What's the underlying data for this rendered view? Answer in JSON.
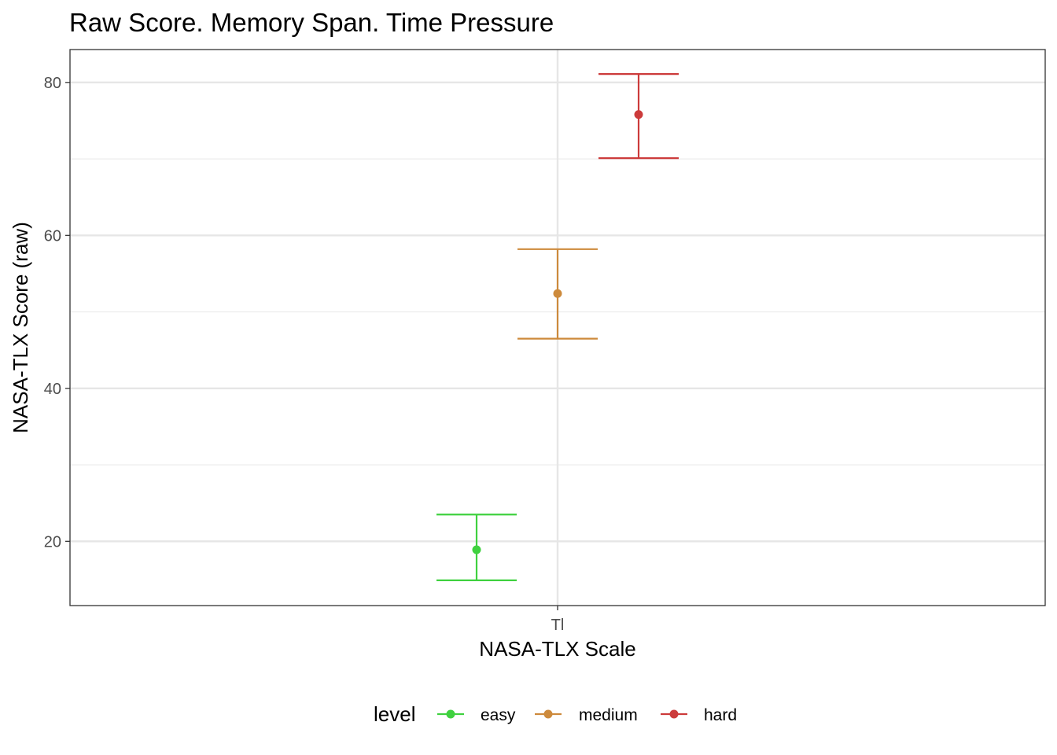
{
  "chart_data": {
    "type": "scatter",
    "title": "Raw Score. Memory Span. Time Pressure",
    "xlabel": "NASA-TLX Scale",
    "ylabel": "NASA-TLX Score (raw)",
    "categories": [
      "Tl"
    ],
    "ylim": [
      11.6,
      84.3
    ],
    "yticks": [
      "20",
      "40",
      "60",
      "80"
    ],
    "grid": true,
    "legend": {
      "title": "level",
      "position": "bottom"
    },
    "series": [
      {
        "name": "easy",
        "color": "#3fd13f",
        "mean": 18.9,
        "lower": 14.9,
        "upper": 23.5
      },
      {
        "name": "medium",
        "color": "#cd8a3c",
        "mean": 52.4,
        "lower": 46.5,
        "upper": 58.2
      },
      {
        "name": "hard",
        "color": "#cc3b3b",
        "mean": 75.8,
        "lower": 70.1,
        "upper": 81.1
      }
    ]
  }
}
